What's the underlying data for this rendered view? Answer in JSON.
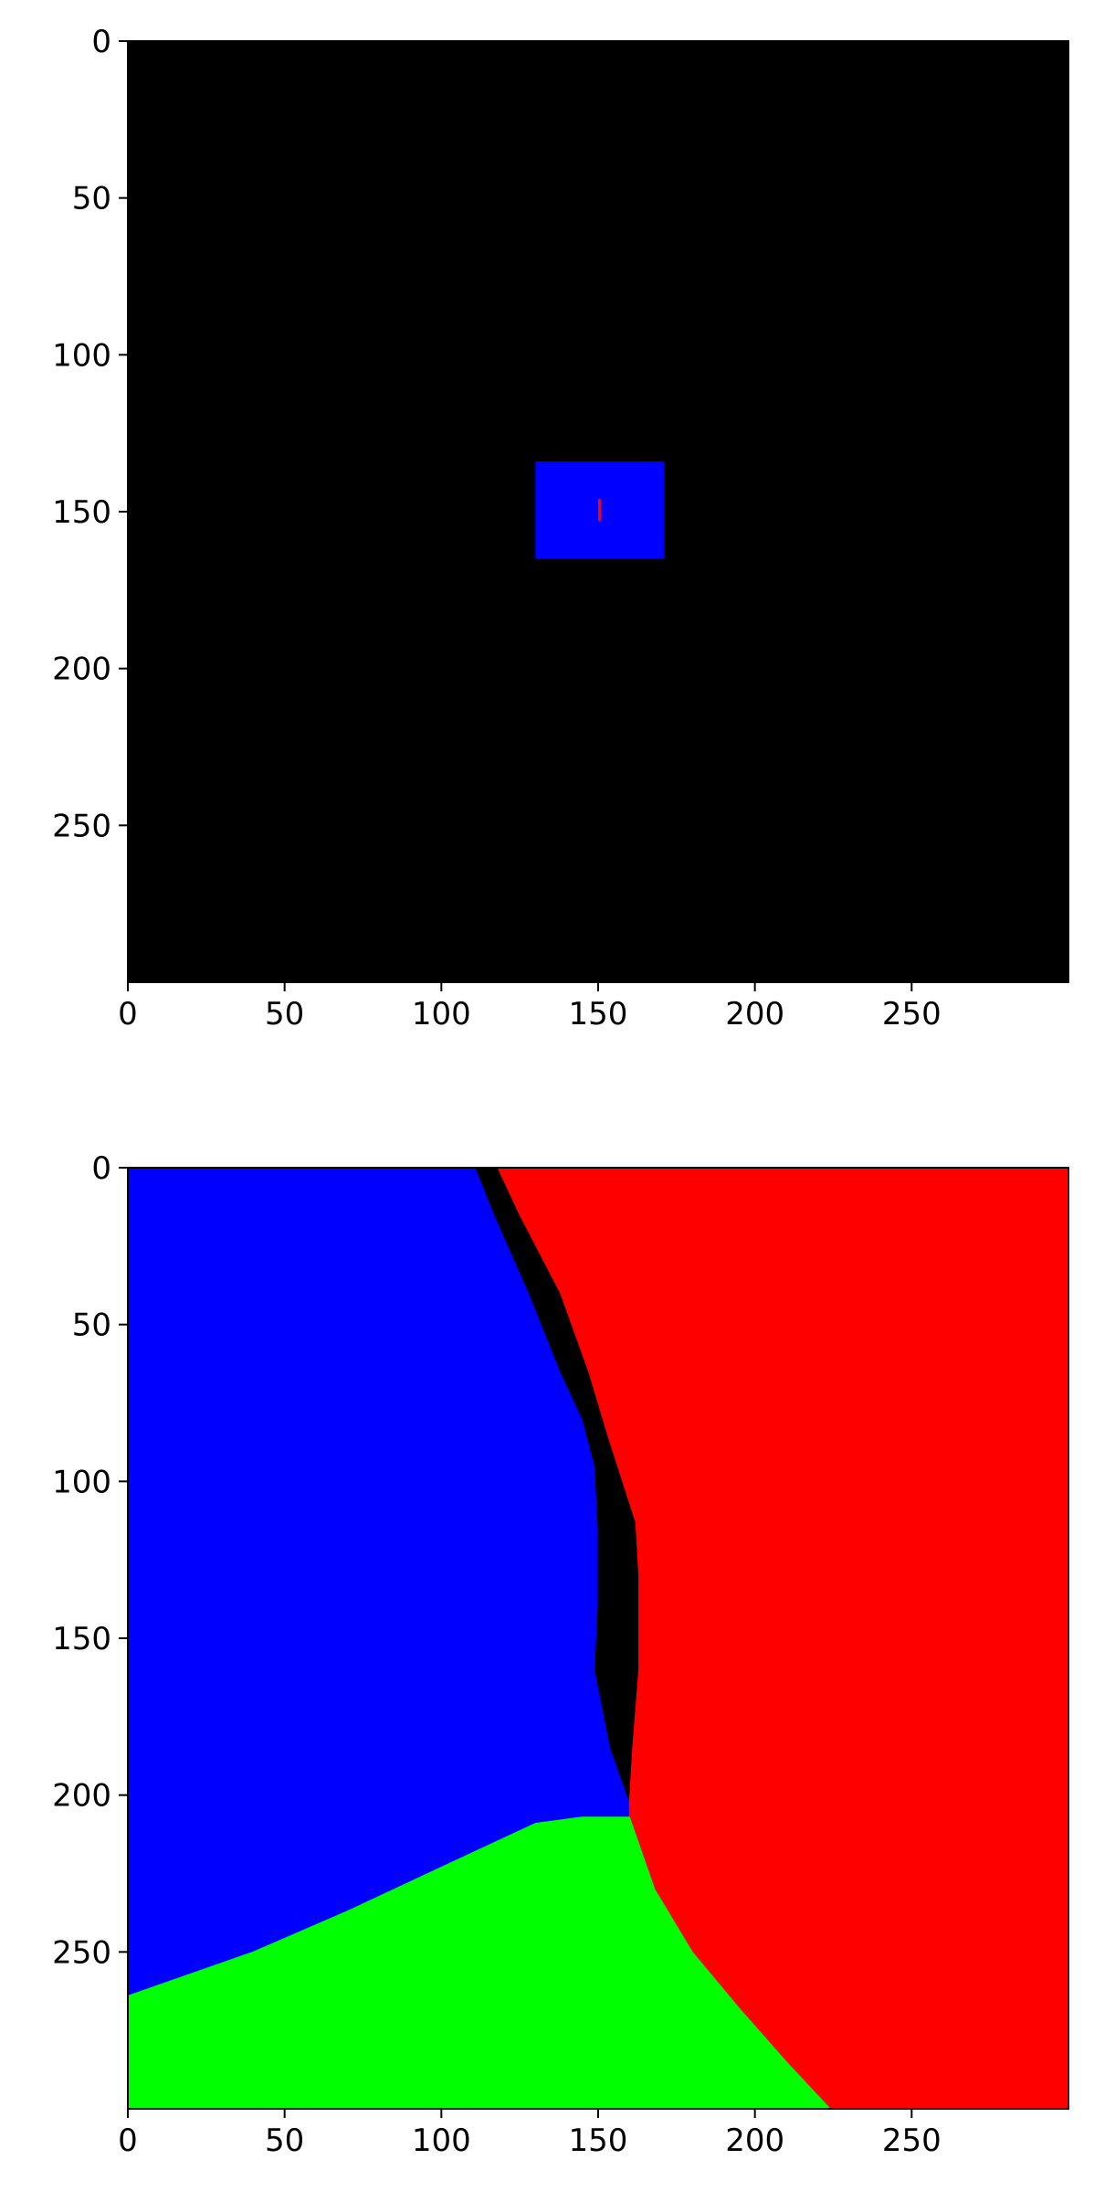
{
  "chart_data": [
    {
      "type": "heatmap",
      "title": "",
      "xlabel": "",
      "ylabel": "",
      "xlim": [
        0,
        300
      ],
      "ylim": [
        300,
        0
      ],
      "xticks": [
        0,
        50,
        100,
        150,
        200,
        250
      ],
      "yticks": [
        0,
        50,
        100,
        150,
        200,
        250
      ],
      "x_tick_labels": [
        "0",
        "50",
        "100",
        "150",
        "200",
        "250"
      ],
      "y_tick_labels": [
        "0",
        "50",
        "100",
        "150",
        "200",
        "250"
      ],
      "grid": false,
      "background_color": "#000000",
      "regions": [
        {
          "label": "blue square",
          "color": "#0000ff",
          "x_range": [
            130,
            171
          ],
          "y_range": [
            134,
            165
          ]
        },
        {
          "label": "red marker",
          "color": "#ff0000",
          "x_range": [
            150,
            151
          ],
          "y_range": [
            146,
            153
          ]
        }
      ]
    },
    {
      "type": "heatmap",
      "title": "",
      "xlabel": "",
      "ylabel": "",
      "xlim": [
        0,
        300
      ],
      "ylim": [
        300,
        0
      ],
      "xticks": [
        0,
        50,
        100,
        150,
        200,
        250
      ],
      "yticks": [
        0,
        50,
        100,
        150,
        200,
        250
      ],
      "x_tick_labels": [
        "0",
        "50",
        "100",
        "150",
        "200",
        "250"
      ],
      "y_tick_labels": [
        "0",
        "50",
        "100",
        "150",
        "200",
        "250"
      ],
      "grid": false,
      "regions": [
        {
          "label": "blue region",
          "color": "#0000ff",
          "polygon": [
            [
              0,
              0
            ],
            [
              111,
              0
            ],
            [
              117,
              15
            ],
            [
              128,
              40
            ],
            [
              138,
              65
            ],
            [
              145,
              80
            ],
            [
              149,
              95
            ],
            [
              150,
              115
            ],
            [
              150,
              140
            ],
            [
              149,
              160
            ],
            [
              154,
              185
            ],
            [
              160,
              202
            ],
            [
              160,
              207
            ],
            [
              145,
              207
            ],
            [
              130,
              209
            ],
            [
              100,
              223
            ],
            [
              70,
              237
            ],
            [
              40,
              250
            ],
            [
              0,
              264
            ]
          ]
        },
        {
          "label": "black region",
          "color": "#000000",
          "polygon": [
            [
              111,
              0
            ],
            [
              118,
              0
            ],
            [
              125,
              15
            ],
            [
              138,
              40
            ],
            [
              147,
              65
            ],
            [
              153,
              85
            ],
            [
              162,
              113
            ],
            [
              163,
              130
            ],
            [
              163,
              160
            ],
            [
              161,
              185
            ],
            [
              160,
              202
            ],
            [
              154,
              185
            ],
            [
              149,
              160
            ],
            [
              150,
              140
            ],
            [
              150,
              115
            ],
            [
              149,
              95
            ],
            [
              145,
              80
            ],
            [
              138,
              65
            ],
            [
              128,
              40
            ],
            [
              117,
              15
            ]
          ]
        },
        {
          "label": "red region",
          "color": "#ff0000",
          "polygon": [
            [
              118,
              0
            ],
            [
              300,
              0
            ],
            [
              300,
              300
            ],
            [
              224,
              300
            ],
            [
              210,
              285
            ],
            [
              195,
              268
            ],
            [
              180,
              250
            ],
            [
              168,
              230
            ],
            [
              160,
              207
            ],
            [
              160,
              202
            ],
            [
              161,
              185
            ],
            [
              163,
              160
            ],
            [
              163,
              130
            ],
            [
              162,
              113
            ],
            [
              153,
              85
            ],
            [
              147,
              65
            ],
            [
              138,
              40
            ],
            [
              125,
              15
            ]
          ]
        },
        {
          "label": "green region",
          "color": "#00ff00",
          "polygon": [
            [
              0,
              264
            ],
            [
              40,
              250
            ],
            [
              70,
              237
            ],
            [
              100,
              223
            ],
            [
              130,
              209
            ],
            [
              145,
              207
            ],
            [
              160,
              207
            ],
            [
              168,
              230
            ],
            [
              180,
              250
            ],
            [
              195,
              268
            ],
            [
              210,
              285
            ],
            [
              224,
              300
            ],
            [
              0,
              300
            ]
          ]
        }
      ]
    }
  ]
}
